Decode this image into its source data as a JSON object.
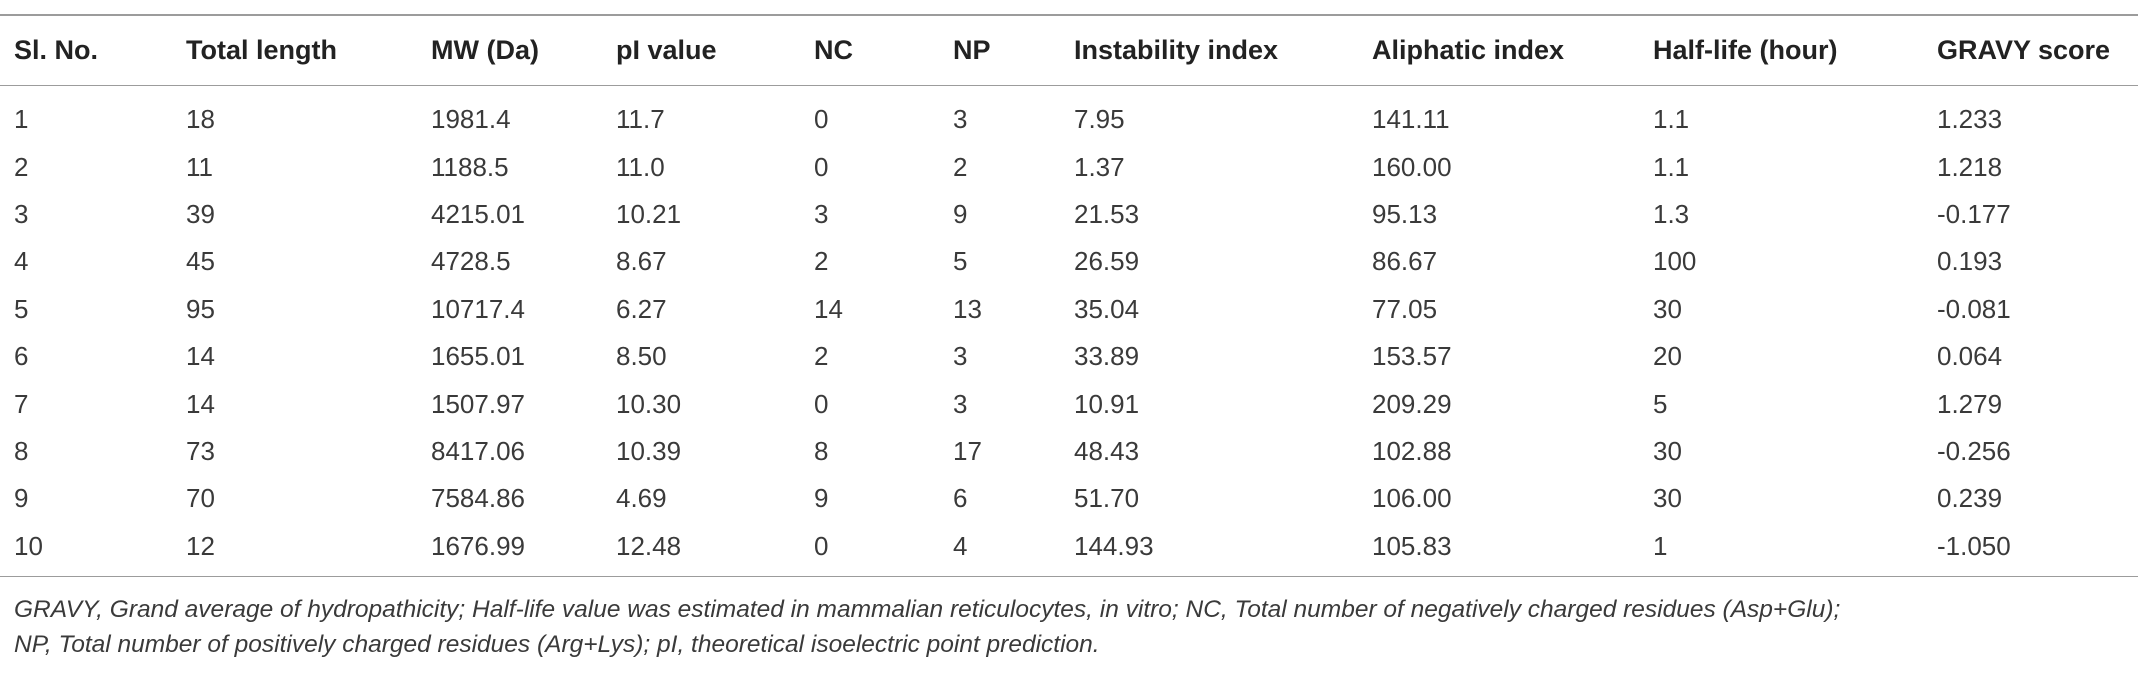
{
  "table": {
    "headers": [
      "Sl. No.",
      "Total length",
      "MW (Da)",
      "pI value",
      "NC",
      "NP",
      "Instability index",
      "Aliphatic index",
      "Half-life (hour)",
      "GRAVY score"
    ],
    "rows": [
      [
        "1",
        "18",
        "1981.4",
        "11.7",
        "0",
        "3",
        "7.95",
        "141.11",
        "1.1",
        "1.233"
      ],
      [
        "2",
        "11",
        "1188.5",
        "11.0",
        "0",
        "2",
        "1.37",
        "160.00",
        "1.1",
        "1.218"
      ],
      [
        "3",
        "39",
        "4215.01",
        "10.21",
        "3",
        "9",
        "21.53",
        "95.13",
        "1.3",
        "-0.177"
      ],
      [
        "4",
        "45",
        "4728.5",
        "8.67",
        "2",
        "5",
        "26.59",
        "86.67",
        "100",
        "0.193"
      ],
      [
        "5",
        "95",
        "10717.4",
        "6.27",
        "14",
        "13",
        "35.04",
        "77.05",
        "30",
        "-0.081"
      ],
      [
        "6",
        "14",
        "1655.01",
        "8.50",
        "2",
        "3",
        "33.89",
        "153.57",
        "20",
        "0.064"
      ],
      [
        "7",
        "14",
        "1507.97",
        "10.30",
        "0",
        "3",
        "10.91",
        "209.29",
        "5",
        "1.279"
      ],
      [
        "8",
        "73",
        "8417.06",
        "10.39",
        "8",
        "17",
        "48.43",
        "102.88",
        "30",
        "-0.256"
      ],
      [
        "9",
        "70",
        "7584.86",
        "4.69",
        "9",
        "6",
        "51.70",
        "106.00",
        "30",
        "0.239"
      ],
      [
        "10",
        "12",
        "1676.99",
        "12.48",
        "0",
        "4",
        "144.93",
        "105.83",
        "1",
        "-1.050"
      ]
    ]
  },
  "footnote": {
    "line1": "GRAVY, Grand average of hydropathicity; Half-life value was estimated in mammalian reticulocytes, in vitro; NC, Total number of negatively charged residues (Asp+Glu);",
    "line2": "NP, Total number of positively charged residues (Arg+Lys); pI, theoretical isoelectric point prediction."
  }
}
